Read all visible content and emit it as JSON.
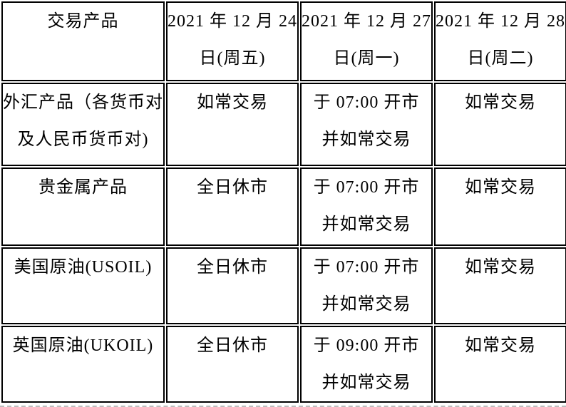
{
  "colors": {
    "border_color": "#000000",
    "text_color": "#000000",
    "bg_color": "#ffffff",
    "bottom_edge_color": "#bdbdbd"
  },
  "table": {
    "headers": [
      "交易产品",
      "2021 年 12 月 24\n日(周五)",
      "2021 年 12 月 27\n日(周一)",
      "2021 年 12 月 28\n日(周二)"
    ],
    "rows": [
      {
        "cells": [
          "外汇产品（各货币对\n及人民币货币对)",
          "如常交易",
          "于 07:00 开市\n并如常交易",
          "如常交易"
        ]
      },
      {
        "cells": [
          "贵金属产品",
          "全日休市",
          "于 07:00 开市\n并如常交易",
          "如常交易"
        ]
      },
      {
        "cells": [
          "美国原油(USOIL)",
          "全日休市",
          "于 07:00 开市\n并如常交易",
          "如常交易"
        ]
      },
      {
        "cells": [
          "英国原油(UKOIL)",
          "全日休市",
          "于 09:00 开市\n并如常交易",
          "如常交易"
        ]
      }
    ]
  }
}
